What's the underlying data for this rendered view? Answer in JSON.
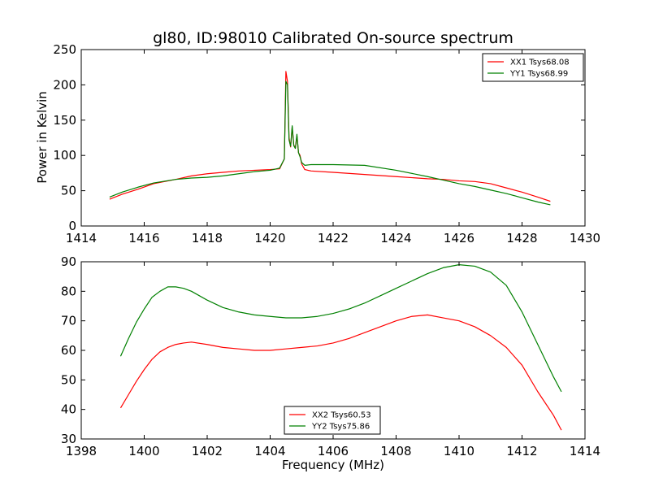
{
  "figure": {
    "title": "gl80, ID:98010 Calibrated On-source spectrum",
    "xlabel": "Frequency (MHz)"
  },
  "colors": {
    "red": "#ff0000",
    "green": "#008000",
    "axes": "#000000"
  },
  "chart_data": [
    {
      "type": "line",
      "title": "gl80, ID:98010 Calibrated On-source spectrum",
      "xlabel": "",
      "ylabel": "Power in Kelvin",
      "xlim": [
        1414,
        1430
      ],
      "ylim": [
        0,
        250
      ],
      "xticks": [
        1414,
        1416,
        1418,
        1420,
        1422,
        1424,
        1426,
        1428,
        1430
      ],
      "yticks": [
        0,
        50,
        100,
        150,
        200,
        250
      ],
      "grid": false,
      "legend_position": "top-right",
      "series": [
        {
          "name": "XX1 Tsys68.08",
          "color": "#ff0000",
          "x": [
            1414.9,
            1415.3,
            1415.8,
            1416.3,
            1417.0,
            1417.5,
            1418.0,
            1418.5,
            1419.0,
            1419.5,
            1420.0,
            1420.3,
            1420.45,
            1420.5,
            1420.55,
            1420.6,
            1420.65,
            1420.7,
            1420.75,
            1420.8,
            1420.85,
            1420.9,
            1420.95,
            1421.0,
            1421.1,
            1421.3,
            1422.0,
            1423.0,
            1424.0,
            1425.0,
            1425.5,
            1426.0,
            1426.5,
            1427.0,
            1427.5,
            1428.0,
            1428.5,
            1428.9
          ],
          "y": [
            38,
            45,
            52,
            60,
            66,
            71,
            74,
            76,
            78,
            79,
            80,
            81,
            95,
            219,
            205,
            125,
            112,
            140,
            115,
            110,
            128,
            104,
            100,
            88,
            80,
            78,
            76,
            73,
            70,
            67,
            66,
            64,
            63,
            60,
            54,
            48,
            41,
            35
          ]
        },
        {
          "name": "YY1 Tsys68.99",
          "color": "#008000",
          "x": [
            1414.9,
            1415.3,
            1415.8,
            1416.3,
            1417.0,
            1417.5,
            1418.0,
            1418.5,
            1419.0,
            1419.5,
            1420.0,
            1420.3,
            1420.45,
            1420.5,
            1420.55,
            1420.6,
            1420.65,
            1420.7,
            1420.75,
            1420.8,
            1420.85,
            1420.9,
            1420.95,
            1421.0,
            1421.1,
            1421.3,
            1422.0,
            1423.0,
            1424.0,
            1425.0,
            1425.5,
            1426.0,
            1426.5,
            1427.0,
            1427.5,
            1428.0,
            1428.5,
            1428.9
          ],
          "y": [
            41,
            48,
            55,
            61,
            66,
            68,
            69,
            71,
            74,
            77,
            79,
            82,
            95,
            205,
            200,
            122,
            113,
            142,
            114,
            110,
            130,
            104,
            98,
            90,
            86,
            87,
            87,
            86,
            79,
            70,
            65,
            60,
            56,
            51,
            46,
            40,
            34,
            30
          ]
        }
      ]
    },
    {
      "type": "line",
      "xlabel": "Frequency (MHz)",
      "ylabel": "",
      "xlim": [
        1398,
        1414
      ],
      "ylim": [
        30,
        90
      ],
      "xticks": [
        1398,
        1400,
        1402,
        1404,
        1406,
        1408,
        1410,
        1412,
        1414
      ],
      "yticks": [
        30,
        40,
        50,
        60,
        70,
        80,
        90
      ],
      "grid": false,
      "legend_position": "bottom-center",
      "series": [
        {
          "name": "XX2 Tsys60.53",
          "color": "#ff0000",
          "x": [
            1399.25,
            1399.5,
            1399.75,
            1400.0,
            1400.25,
            1400.5,
            1400.75,
            1401.0,
            1401.25,
            1401.5,
            1402.0,
            1402.5,
            1403.0,
            1403.5,
            1404.0,
            1404.5,
            1405.0,
            1405.5,
            1406.0,
            1406.5,
            1407.0,
            1407.5,
            1408.0,
            1408.5,
            1409.0,
            1409.5,
            1410.0,
            1410.5,
            1411.0,
            1411.5,
            1412.0,
            1412.5,
            1413.0,
            1413.25
          ],
          "y": [
            40.5,
            45,
            49.5,
            53.5,
            57,
            59.5,
            61,
            62,
            62.5,
            62.8,
            62,
            61,
            60.5,
            60,
            60,
            60.5,
            61,
            61.5,
            62.5,
            64,
            66,
            68,
            70,
            71.5,
            72,
            71,
            70,
            68,
            65,
            61,
            55,
            46,
            38,
            33
          ]
        },
        {
          "name": "YY2 Tsys75.86",
          "color": "#008000",
          "x": [
            1399.25,
            1399.5,
            1399.75,
            1400.0,
            1400.25,
            1400.5,
            1400.75,
            1401.0,
            1401.25,
            1401.5,
            1402.0,
            1402.5,
            1403.0,
            1403.5,
            1404.0,
            1404.5,
            1405.0,
            1405.5,
            1406.0,
            1406.5,
            1407.0,
            1407.5,
            1408.0,
            1408.5,
            1409.0,
            1409.5,
            1410.0,
            1410.5,
            1411.0,
            1411.5,
            1412.0,
            1412.5,
            1413.0,
            1413.25
          ],
          "y": [
            58,
            64,
            69.5,
            74,
            78,
            80,
            81.5,
            81.5,
            81,
            80,
            77,
            74.5,
            73,
            72,
            71.5,
            71,
            71,
            71.5,
            72.5,
            74,
            76,
            78.5,
            81,
            83.5,
            86,
            88,
            89,
            88.5,
            86.5,
            82,
            73,
            62,
            51,
            46
          ]
        }
      ]
    }
  ]
}
